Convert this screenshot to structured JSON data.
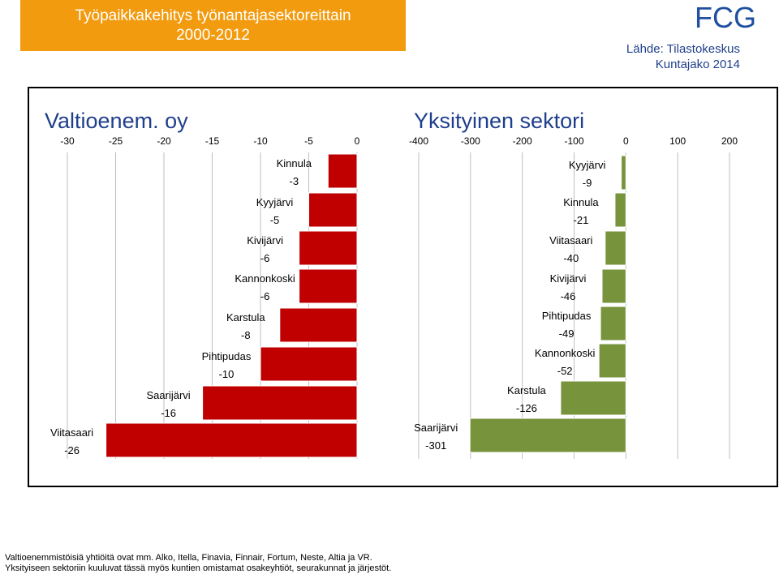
{
  "header": {
    "title_line1": "Työpaikkakehitys työnantajasektoreittain",
    "title_line2": "2000-2012",
    "logo_text": "FCG",
    "source_line1": "Lähde: Tilastokeskus",
    "source_line2": "Kuntajako 2014"
  },
  "colors": {
    "title_bg": "#f29b0f",
    "public_bar": "#c00000",
    "private_bar": "#77933c",
    "logo": "#1e4fa0"
  },
  "chart_data": [
    {
      "type": "bar",
      "orientation": "horizontal",
      "title": "Valtioenem. oy",
      "xlim": [
        -30,
        0
      ],
      "ticks": [
        -30,
        -25,
        -20,
        -15,
        -10,
        -5,
        0
      ],
      "tick_labels": [
        "-30",
        "-25",
        "-20",
        "-15",
        "-10",
        "-5",
        "0"
      ],
      "categories": [
        "Kinnula",
        "Kyyjärvi",
        "Kivijärvi",
        "Kannonkoski",
        "Karstula",
        "Pihtipudas",
        "Saarijärvi",
        "Viitasaari"
      ],
      "values": [
        -3,
        -5,
        -6,
        -6,
        -8,
        -10,
        -16,
        -26
      ],
      "value_labels": [
        "-3",
        "-5",
        "-6",
        "-6",
        "-8",
        "-10",
        "-16",
        "-26"
      ],
      "grid": true
    },
    {
      "type": "bar",
      "orientation": "horizontal",
      "title": "Yksityinen sektori",
      "xlim": [
        -400,
        200
      ],
      "ticks": [
        -400,
        -300,
        -200,
        -100,
        0,
        100,
        200
      ],
      "tick_labels": [
        "-400",
        "-300",
        "-200",
        "-100",
        "0",
        "100",
        "200"
      ],
      "categories": [
        "Kyyjärvi",
        "Kinnula",
        "Viitasaari",
        "Kivijärvi",
        "Pihtipudas",
        "Kannonkoski",
        "Karstula",
        "Saarijärvi"
      ],
      "values": [
        -9,
        -21,
        -40,
        -46,
        -49,
        -52,
        -126,
        -301
      ],
      "value_labels": [
        "-9",
        "-21",
        "-40",
        "-46",
        "-49",
        "-52",
        "-126",
        "-301"
      ],
      "grid": true
    }
  ],
  "footer": {
    "line1": "Valtioenemmistöisiä yhtiöitä ovat mm. Alko, Itella, Finavia, Finnair, Fortum, Neste, Altia ja VR.",
    "line2": "Yksityiseen sektoriin kuuluvat tässä myös kuntien omistamat osakeyhtiöt, seurakunnat ja järjestöt."
  }
}
